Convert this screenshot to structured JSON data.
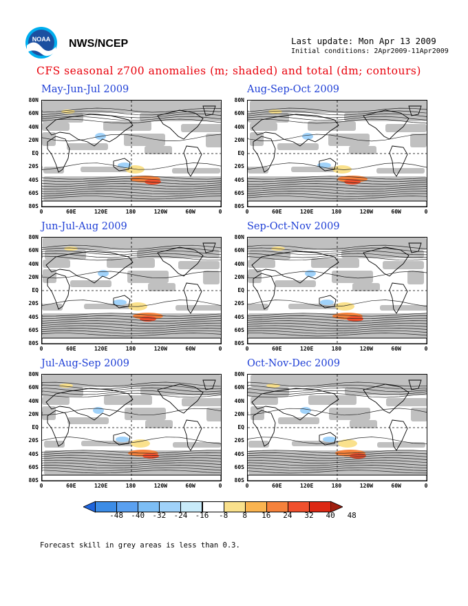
{
  "header": {
    "agency": "NWS/NCEP",
    "last_update": "Last update: Mon Apr 13 2009",
    "initial_conditions": "Initial conditions: 2Apr2009-11Apr2009",
    "logo": "noaa-logo"
  },
  "main_title": "CFS seasonal z700 anomalies (m; shaded) and total (dm; contours)",
  "panels": [
    {
      "title": "May-Jun-Jul 2009"
    },
    {
      "title": "Aug-Sep-Oct 2009"
    },
    {
      "title": "Jun-Jul-Aug 2009"
    },
    {
      "title": "Sep-Oct-Nov 2009"
    },
    {
      "title": "Jul-Aug-Sep 2009"
    },
    {
      "title": "Oct-Nov-Dec 2009"
    }
  ],
  "axes": {
    "lat_labels": [
      "80N",
      "60N",
      "40N",
      "20N",
      "EQ",
      "20S",
      "40S",
      "60S",
      "80S"
    ],
    "lon_labels": [
      "0",
      "60E",
      "120E",
      "180",
      "120W",
      "60W",
      "0"
    ]
  },
  "colorbar": {
    "labels": [
      "-48",
      "-40",
      "-32",
      "-24",
      "-16",
      "-8",
      "8",
      "16",
      "24",
      "32",
      "40",
      "48"
    ],
    "colors": [
      "#1e64dc",
      "#3c8ce6",
      "#5aa0f0",
      "#7dbef5",
      "#a0d2fa",
      "#c8ebfa",
      "#ffffff",
      "#fae18c",
      "#fab450",
      "#f5823c",
      "#f0502d",
      "#dc2814",
      "#a01e0f"
    ]
  },
  "footnote": "Forecast skill in grey areas is less than 0.3.",
  "colors": {
    "title_red": "#e8000b",
    "panel_title_blue": "#1f3fd6",
    "skill_grey": "#c0c0c0"
  }
}
